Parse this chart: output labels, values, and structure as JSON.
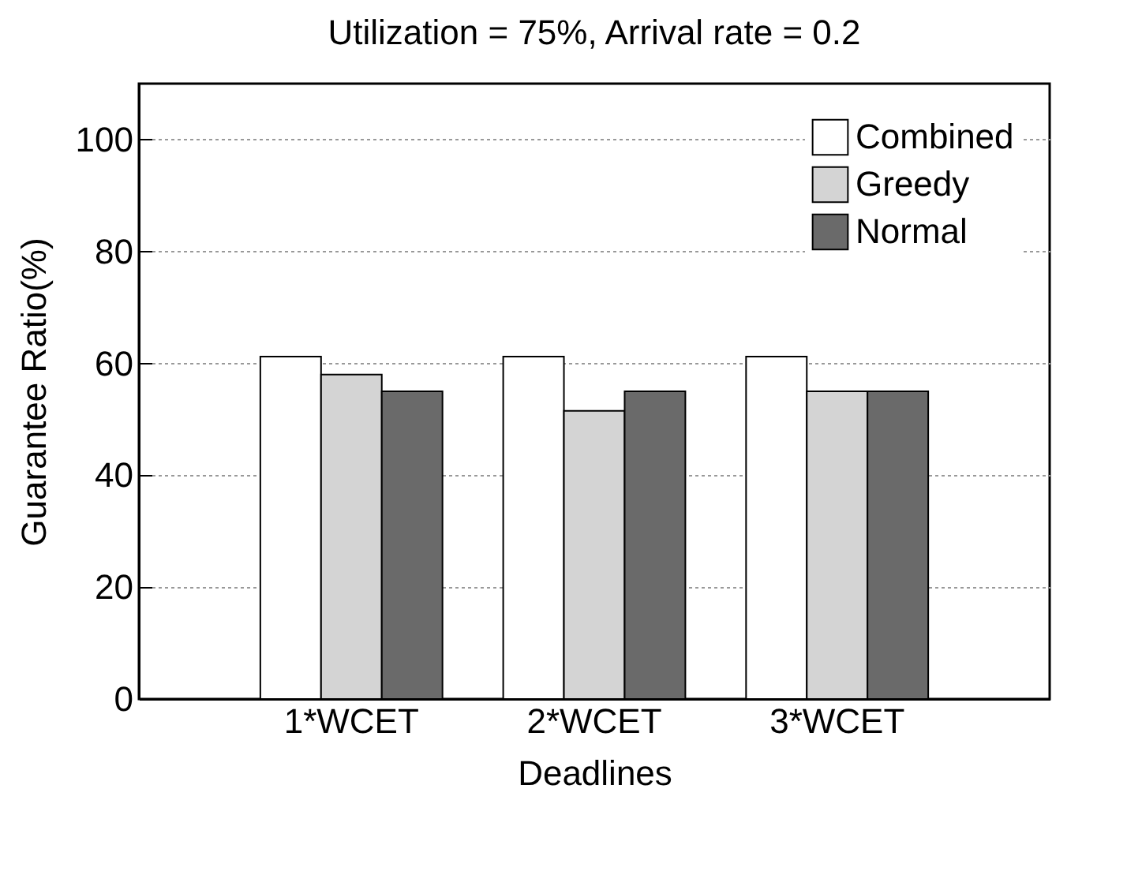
{
  "chart_data": {
    "type": "bar",
    "title": "Utilization = 75%, Arrival rate = 0.2",
    "xlabel": "Deadlines",
    "ylabel": "Guarantee Ratio(%)",
    "categories": [
      "1*WCET",
      "2*WCET",
      "3*WCET"
    ],
    "series": [
      {
        "name": "Combined",
        "color": "#ffffff",
        "values": [
          61.2,
          61.2,
          61.2
        ]
      },
      {
        "name": "Greedy",
        "color": "#d4d4d4",
        "values": [
          58,
          51.5,
          55
        ]
      },
      {
        "name": "Normal",
        "color": "#6a6a6a",
        "values": [
          55,
          55,
          55
        ]
      }
    ],
    "ylim": [
      0,
      110
    ],
    "yticks": [
      0,
      20,
      40,
      60,
      80,
      100
    ],
    "grid": "y",
    "legend": "top right"
  }
}
